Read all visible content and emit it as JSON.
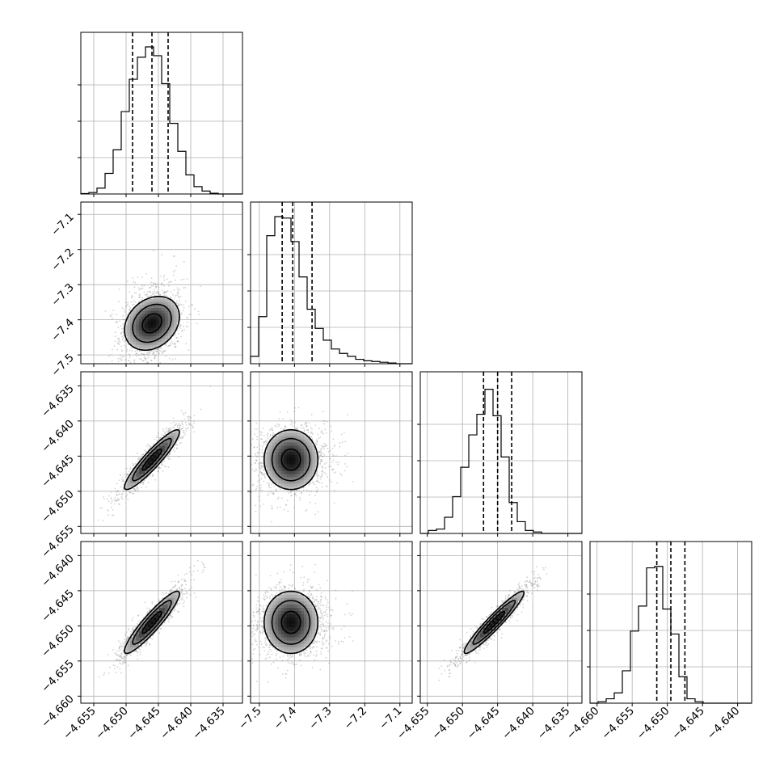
{
  "chart_data": {
    "type": "corner",
    "parameters": [
      {
        "index": 0,
        "range": [
          -4.657,
          -4.632
        ],
        "ticks": [
          -4.655,
          -4.65,
          -4.645,
          -4.64,
          -4.635
        ],
        "tick_labels": [
          "−4.655",
          "−4.650",
          "−4.645",
          "−4.640",
          "−4.635"
        ],
        "quantiles": [
          -4.649,
          -4.646,
          -4.6435
        ]
      },
      {
        "index": 1,
        "range": [
          -7.525,
          -7.065
        ],
        "ticks": [
          -7.5,
          -7.4,
          -7.3,
          -7.2,
          -7.1
        ],
        "tick_labels": [
          "−7.5",
          "−7.4",
          "−7.3",
          "−7.2",
          "−7.1"
        ],
        "quantiles": [
          -7.435,
          -7.405,
          -7.35
        ]
      },
      {
        "index": 2,
        "range": [
          -4.656,
          -4.633
        ],
        "ticks": [
          -4.655,
          -4.65,
          -4.645,
          -4.64,
          -4.635
        ],
        "tick_labels": [
          "−4.655",
          "−4.650",
          "−4.645",
          "−4.640",
          "−4.635"
        ],
        "quantiles": [
          -4.647,
          -4.645,
          -4.643
        ]
      },
      {
        "index": 3,
        "range": [
          -4.661,
          -4.638
        ],
        "ticks": [
          -4.66,
          -4.655,
          -4.65,
          -4.645,
          -4.64
        ],
        "tick_labels": [
          "−4.660",
          "−4.655",
          "−4.650",
          "−4.645",
          "−4.640"
        ],
        "quantiles": [
          -4.6515,
          -4.6495,
          -4.6475
        ]
      }
    ],
    "histograms": [
      [
        0.003,
        0.01,
        0.04,
        0.14,
        0.3,
        0.56,
        0.78,
        0.93,
        1.0,
        0.94,
        0.75,
        0.48,
        0.29,
        0.13,
        0.05,
        0.02,
        0.005,
        0.0,
        0.0,
        0.0
      ],
      [
        0.05,
        0.32,
        0.87,
        1.0,
        0.99,
        0.83,
        0.59,
        0.37,
        0.24,
        0.16,
        0.1,
        0.07,
        0.05,
        0.03,
        0.02,
        0.015,
        0.01,
        0.005,
        0.0,
        0.0
      ],
      [
        0.0,
        0.02,
        0.03,
        0.11,
        0.25,
        0.45,
        0.67,
        0.81,
        0.98,
        0.8,
        0.52,
        0.21,
        0.08,
        0.02,
        0.01,
        0.0,
        0.0,
        0.0,
        0.0,
        0.0
      ],
      [
        0.0,
        0.01,
        0.03,
        0.07,
        0.22,
        0.49,
        0.66,
        0.92,
        0.93,
        0.64,
        0.47,
        0.18,
        0.03,
        0.01,
        0.0,
        0.0,
        0.0,
        0.0,
        0.0,
        0.0
      ]
    ],
    "means": [
      -4.646,
      -7.41,
      -4.6455,
      -4.6495
    ],
    "sigmas": [
      0.0025,
      0.045,
      0.0025,
      0.0026
    ],
    "correlations": {
      "1-0": 0.25,
      "2-0": 0.92,
      "2-1": 0.0,
      "3-0": 0.92,
      "3-1": 0.0,
      "3-2": 0.95
    },
    "contour_sigmas": [
      0.6,
      1.2,
      1.7
    ],
    "grid": true,
    "colors": {
      "points": "#808080",
      "lines": "#000000"
    }
  }
}
